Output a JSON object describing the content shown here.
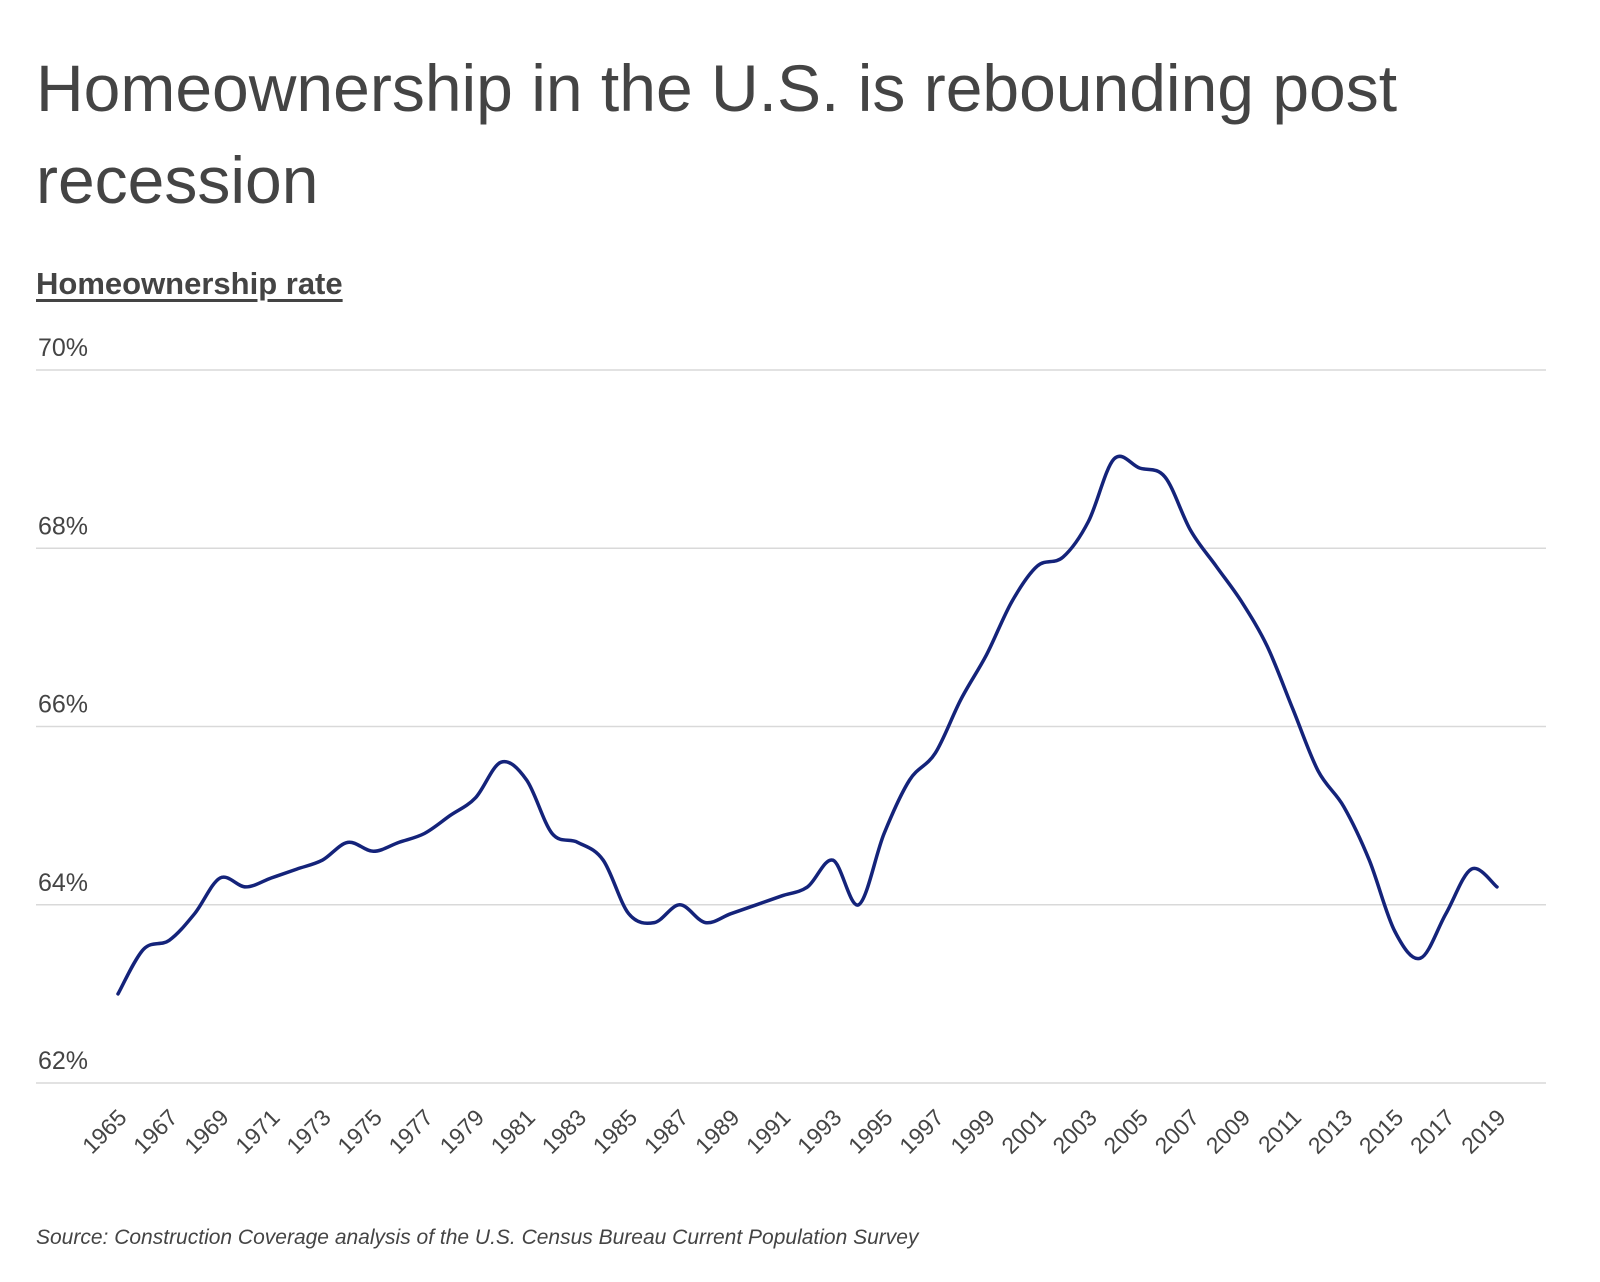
{
  "chart_data": {
    "type": "line",
    "title": "Homeownership in the U.S. is rebounding post recession",
    "ylabel": "Homeownership rate",
    "source": "Source: Construction Coverage analysis of the U.S. Census Bureau Current Population Survey",
    "ylim": [
      62,
      70
    ],
    "yticks": [
      "62%",
      "64%",
      "66%",
      "68%",
      "70%"
    ],
    "ytick_values": [
      62,
      64,
      66,
      68,
      70
    ],
    "xlim": [
      1965,
      2019
    ],
    "xtick_labels": [
      "1965",
      "1967",
      "1969",
      "1971",
      "1973",
      "1975",
      "1977",
      "1979",
      "1981",
      "1983",
      "1985",
      "1987",
      "1989",
      "1991",
      "1993",
      "1995",
      "1997",
      "1999",
      "2001",
      "2003",
      "2005",
      "2007",
      "2009",
      "2011",
      "2013",
      "2015",
      "2017",
      "2019"
    ],
    "grid": true,
    "line_color": "#14237a",
    "x": [
      1965,
      1966,
      1967,
      1968,
      1969,
      1970,
      1971,
      1972,
      1973,
      1974,
      1975,
      1976,
      1977,
      1978,
      1979,
      1980,
      1981,
      1982,
      1983,
      1984,
      1985,
      1986,
      1987,
      1988,
      1989,
      1990,
      1991,
      1992,
      1993,
      1994,
      1995,
      1996,
      1997,
      1998,
      1999,
      2000,
      2001,
      2002,
      2003,
      2004,
      2005,
      2006,
      2007,
      2008,
      2009,
      2010,
      2011,
      2012,
      2013,
      2014,
      2015,
      2016,
      2017,
      2018,
      2019
    ],
    "values": [
      63.0,
      63.5,
      63.6,
      63.9,
      64.3,
      64.2,
      64.3,
      64.4,
      64.5,
      64.7,
      64.6,
      64.7,
      64.8,
      65.0,
      65.2,
      65.6,
      65.4,
      64.8,
      64.7,
      64.5,
      63.9,
      63.8,
      64.0,
      63.8,
      63.9,
      64.0,
      64.1,
      64.2,
      64.5,
      64.0,
      64.8,
      65.4,
      65.7,
      66.3,
      66.8,
      67.4,
      67.8,
      67.9,
      68.3,
      69.0,
      68.9,
      68.8,
      68.2,
      67.8,
      67.4,
      66.9,
      66.2,
      65.5,
      65.1,
      64.5,
      63.7,
      63.4,
      63.9,
      64.4,
      64.2
    ]
  }
}
